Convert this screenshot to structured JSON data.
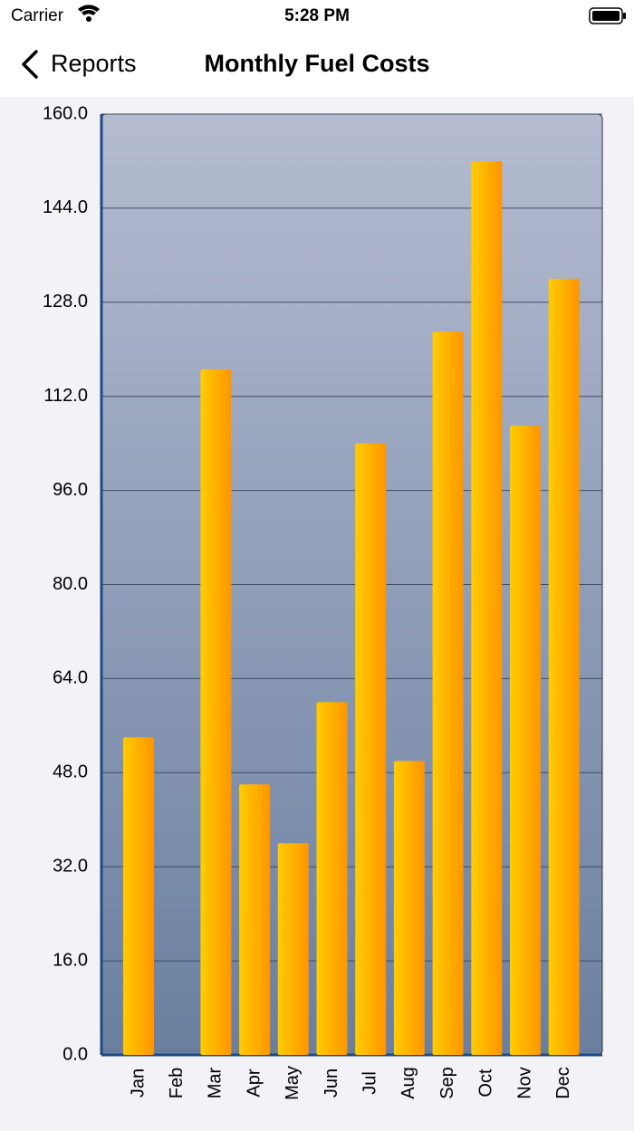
{
  "status_bar": {
    "carrier": "Carrier",
    "time": "5:28 PM"
  },
  "nav": {
    "back": "Reports",
    "title": "Monthly Fuel Costs"
  },
  "chart_data": {
    "type": "bar",
    "categories": [
      "Jan",
      "Feb",
      "Mar",
      "Apr",
      "May",
      "Jun",
      "Jul",
      "Aug",
      "Sep",
      "Oct",
      "Nov",
      "Dec"
    ],
    "values": [
      54,
      0,
      116.6,
      46,
      36,
      60,
      104,
      50,
      123,
      152,
      107,
      132
    ],
    "bar_gradient": [
      "#ffcc00",
      "#ff9500"
    ],
    "ylim": [
      0,
      160
    ],
    "yticks": [
      {
        "value": 0,
        "label": "0.0"
      },
      {
        "value": 16,
        "label": "16.0"
      },
      {
        "value": 32,
        "label": "32.0"
      },
      {
        "value": 48,
        "label": "48.0"
      },
      {
        "value": 64,
        "label": "64.0"
      },
      {
        "value": 80,
        "label": "80.0"
      },
      {
        "value": 96,
        "label": "96.0"
      },
      {
        "value": 112,
        "label": "112.0"
      },
      {
        "value": 128,
        "label": "128.0"
      },
      {
        "value": 144,
        "label": "144.0"
      },
      {
        "value": 160,
        "label": "160.0"
      }
    ],
    "grid": true
  }
}
